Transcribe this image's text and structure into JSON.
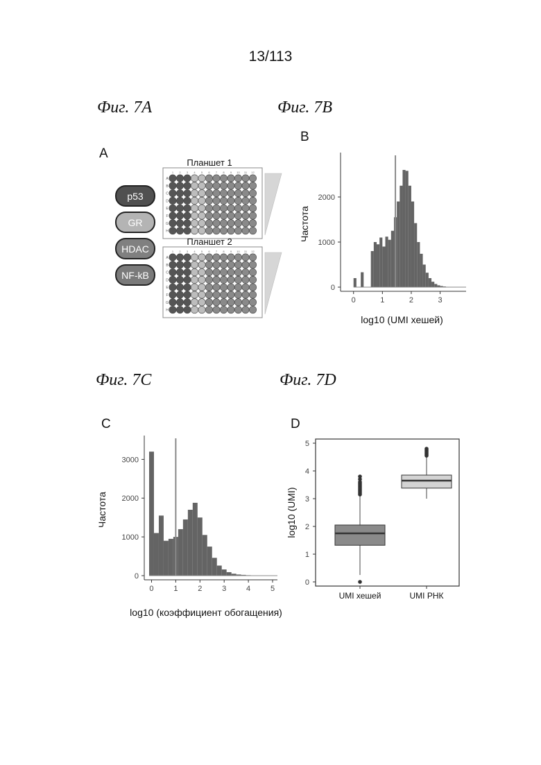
{
  "page_number": "13/113",
  "figure_labels": {
    "a": "Фиг. 7A",
    "b": "Фиг. 7B",
    "c": "Фиг. 7C",
    "d": "Фиг. 7D"
  },
  "panel_letters": {
    "a": "A",
    "b": "B",
    "c": "C",
    "d": "D"
  },
  "panel_a": {
    "legend": [
      {
        "label": "p53",
        "color": "#505050",
        "text_color": "#ffffff"
      },
      {
        "label": "GR",
        "color": "#b4b4b4",
        "text_color": "#ffffff"
      },
      {
        "label": "HDAC",
        "color": "#808080",
        "text_color": "#ffffff"
      },
      {
        "label": "NF-kB",
        "color": "#7a7a7a",
        "text_color": "#ffffff"
      }
    ],
    "plates": [
      {
        "title": "Планшет 1"
      },
      {
        "title": "Планшет 2"
      }
    ],
    "row_letters": [
      "A",
      "B",
      "C",
      "D",
      "E",
      "F",
      "G",
      "H"
    ],
    "col_numbers": [
      "1",
      "2",
      "3",
      "4",
      "5",
      "6",
      "7",
      "8",
      "9",
      "10",
      "11",
      "12"
    ],
    "well_colors": {
      "dark": "#555555",
      "light": "#bdbdbd",
      "mid": "#8a8a8a"
    }
  },
  "chart_data": [
    {
      "id": "7B",
      "type": "bar",
      "title": "",
      "xlabel": "log10 (UMI хешей)",
      "ylabel": "Частота",
      "x_ticks": [
        "0",
        "1",
        "2",
        "3"
      ],
      "y_ticks": [
        "0",
        "1000",
        "2000"
      ],
      "xlim": [
        -0.45,
        3.9
      ],
      "ylim": [
        0,
        2800
      ],
      "vline": 1.45,
      "bin_width": 0.1,
      "bins_start": [
        0.0,
        0.25,
        0.6,
        0.7,
        0.8,
        0.9,
        1.0,
        1.1,
        1.2,
        1.3,
        1.4,
        1.5,
        1.6,
        1.7,
        1.8,
        1.9,
        2.0,
        2.1,
        2.2,
        2.3,
        2.4,
        2.5,
        2.6,
        2.7,
        2.8,
        2.9,
        3.0,
        3.1,
        3.2,
        3.3,
        3.4
      ],
      "values": [
        200,
        330,
        800,
        1000,
        950,
        1100,
        900,
        1120,
        1050,
        1250,
        1550,
        1900,
        2250,
        2600,
        2580,
        2250,
        1900,
        1420,
        1000,
        740,
        500,
        320,
        200,
        120,
        70,
        40,
        25,
        15,
        8,
        5,
        3
      ],
      "bar_color": "#646464"
    },
    {
      "id": "7C",
      "type": "bar",
      "title": "",
      "xlabel": "log10 (коэффициент обогащения)",
      "ylabel": "Частота",
      "x_ticks": [
        "0",
        "1",
        "2",
        "3",
        "4",
        "5"
      ],
      "y_ticks": [
        "0",
        "1000",
        "2000",
        "3000"
      ],
      "xlim": [
        -0.3,
        5.2
      ],
      "ylim": [
        0,
        3400
      ],
      "vline": 1.0,
      "bin_width": 0.2,
      "bins_start": [
        -0.1,
        0.1,
        0.3,
        0.5,
        0.7,
        0.9,
        1.1,
        1.3,
        1.5,
        1.7,
        1.9,
        2.1,
        2.3,
        2.5,
        2.7,
        2.9,
        3.1,
        3.3,
        3.5,
        3.7,
        3.9,
        4.1,
        4.3,
        4.5,
        4.7,
        4.9
      ],
      "values": [
        3200,
        1100,
        1550,
        900,
        950,
        1000,
        1200,
        1450,
        1700,
        1880,
        1500,
        1050,
        750,
        460,
        260,
        160,
        90,
        50,
        30,
        20,
        12,
        8,
        5,
        3,
        2,
        1
      ],
      "bar_color": "#646464"
    },
    {
      "id": "7D",
      "type": "box",
      "title": "",
      "xlabel": "",
      "ylabel": "log10 (UMI)",
      "categories": [
        "UMI хешей",
        "UMI РНК"
      ],
      "y_ticks": [
        "0",
        "1",
        "2",
        "3",
        "4",
        "5"
      ],
      "ylim": [
        -0.15,
        5.15
      ],
      "boxes": [
        {
          "q1": 1.32,
          "median": 1.75,
          "q3": 2.05,
          "whisker_low": 0.25,
          "whisker_high": 3.1,
          "outliers_high": [
            3.15,
            3.2,
            3.25,
            3.3,
            3.35,
            3.4,
            3.45,
            3.5,
            3.55,
            3.6,
            3.7,
            3.8
          ],
          "outliers_low": [
            0.0
          ],
          "color": "#8a8a8a"
        },
        {
          "q1": 3.38,
          "median": 3.65,
          "q3": 3.85,
          "whisker_low": 3.0,
          "whisker_high": 4.5,
          "outliers_high": [
            4.55,
            4.6,
            4.65,
            4.7,
            4.75,
            4.8
          ],
          "outliers_low": [],
          "color": "#d3d3d3"
        }
      ]
    }
  ]
}
